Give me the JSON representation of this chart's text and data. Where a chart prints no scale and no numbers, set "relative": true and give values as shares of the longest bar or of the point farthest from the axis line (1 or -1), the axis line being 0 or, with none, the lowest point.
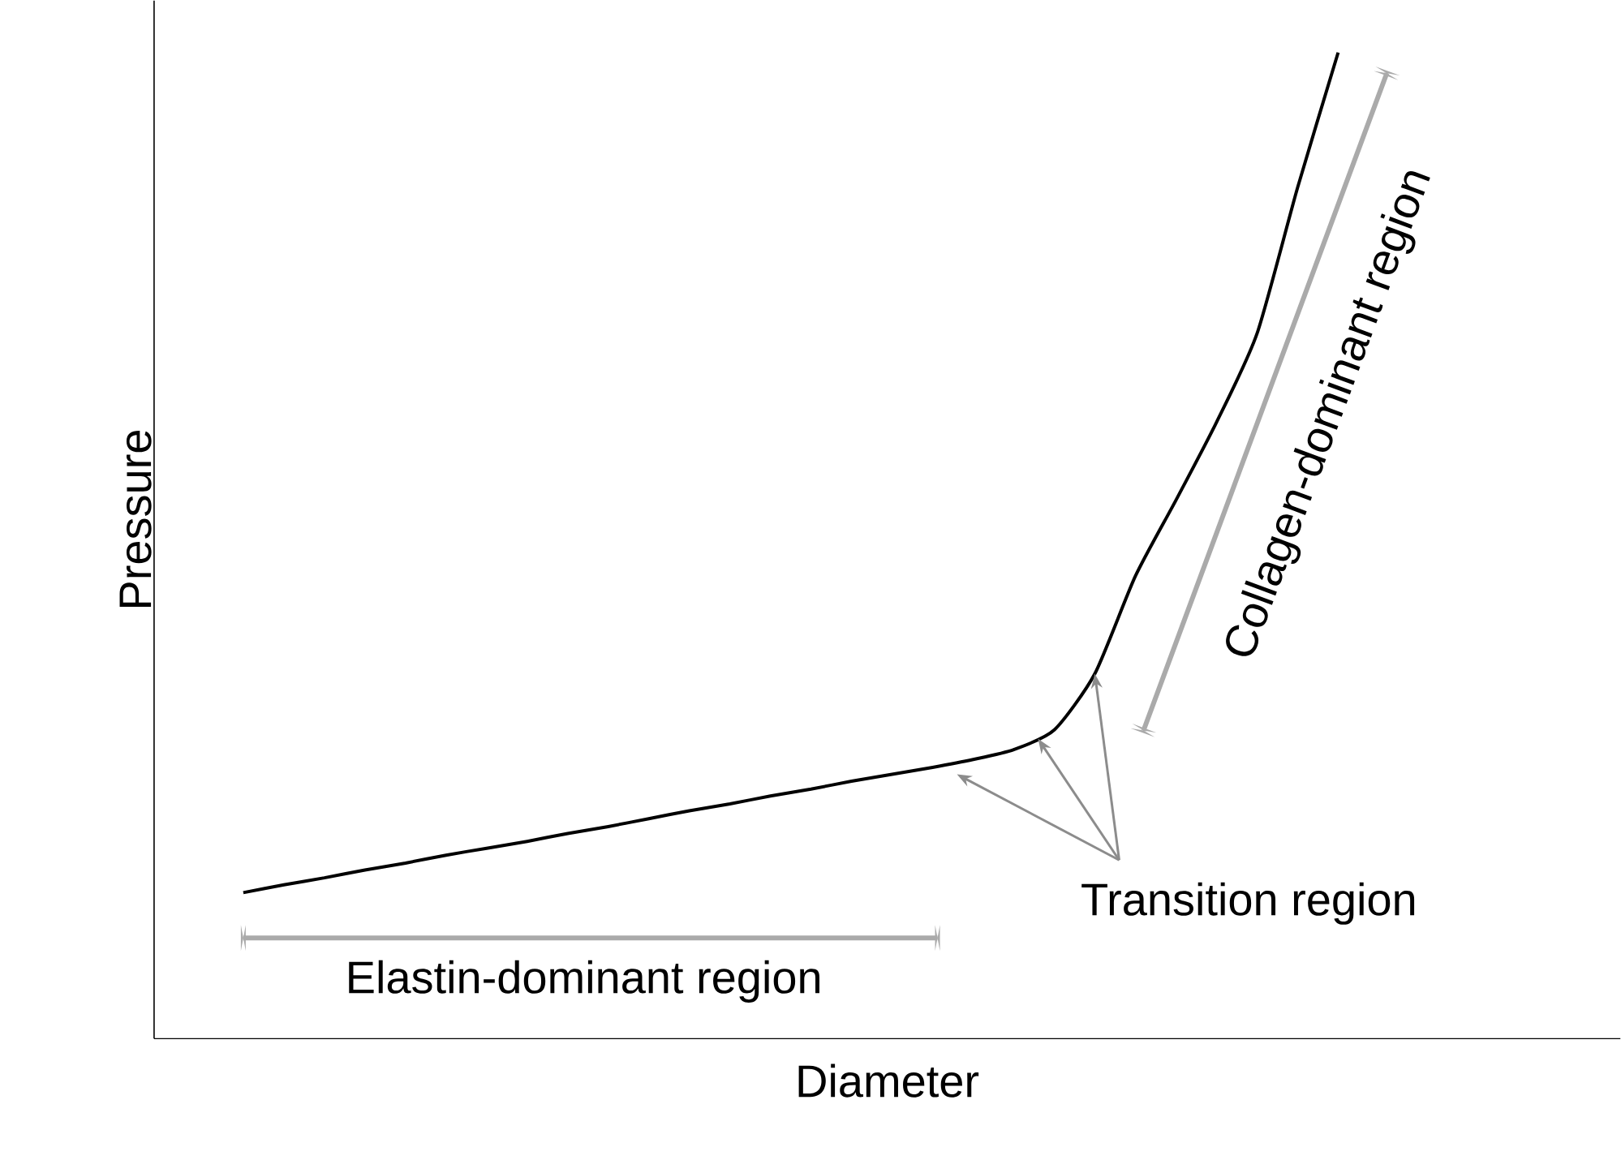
{
  "chart_data": {
    "type": "line",
    "relative": true,
    "xlabel": "Diameter",
    "ylabel": "Pressure",
    "tick_labels": false,
    "marker": "none",
    "line_style": "solid",
    "categories": [
      null,
      null,
      null,
      null,
      null,
      null,
      null,
      null,
      null,
      null,
      null,
      null,
      null,
      null,
      null,
      null,
      null,
      null,
      null,
      null,
      null,
      null,
      null,
      null,
      null,
      null,
      null,
      null
    ],
    "series": [
      {
        "color": "#000000",
        "values": [
          0.148,
          0.156,
          0.163,
          0.171,
          0.178,
          0.186,
          0.193,
          0.2,
          0.208,
          0.215,
          0.223,
          0.231,
          0.238,
          0.246,
          0.253,
          0.261,
          0.268,
          0.275,
          0.283,
          0.293,
          0.313,
          0.37,
          0.469,
          0.546,
          0.625,
          0.715,
          0.863,
          1.0
        ]
      }
    ],
    "annotations": [
      "Elastin-dominant region",
      "Transition region",
      "Collagen-dominant region"
    ]
  }
}
